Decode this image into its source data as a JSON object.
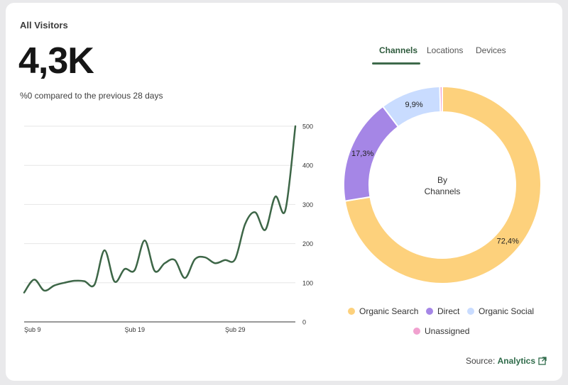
{
  "header": {
    "title": "All Visitors",
    "value": "4,3K",
    "comparison": "%0 compared to the previous 28 days"
  },
  "tabs": [
    {
      "label": "Channels",
      "active": true
    },
    {
      "label": "Locations",
      "active": false
    },
    {
      "label": "Devices",
      "active": false
    }
  ],
  "colors": {
    "line": "#3d6647",
    "grid": "#e6e6e6",
    "organic_search": "#fdd17c",
    "direct": "#a586e6",
    "organic_social": "#c9dcff",
    "unassigned": "#f1a1cf"
  },
  "chart_data": [
    {
      "type": "line",
      "title": "",
      "xlabel": "",
      "ylabel": "",
      "ylim": [
        0,
        500
      ],
      "yticks": [
        "0",
        "100",
        "200",
        "300",
        "400",
        "500"
      ],
      "xtick_labels": [
        "Şub 9",
        "Şub 19",
        "Şub 29"
      ],
      "grid": true,
      "x": [
        "Şub 9",
        "Şub 10",
        "Şub 11",
        "Şub 12",
        "Şub 13",
        "Şub 14",
        "Şub 15",
        "Şub 16",
        "Şub 17",
        "Şub 18",
        "Şub 19",
        "Şub 20",
        "Şub 21",
        "Şub 22",
        "Şub 23",
        "Şub 24",
        "Şub 25",
        "Şub 26",
        "Şub 27",
        "Şub 28",
        "Şub 29",
        "Şub 30",
        "Şub 31",
        "Şub 32",
        "Şub 33",
        "Şub 34",
        "Şub 35",
        "Şub 36"
      ],
      "values": [
        75,
        108,
        80,
        93,
        100,
        105,
        104,
        95,
        183,
        103,
        135,
        132,
        208,
        130,
        150,
        158,
        112,
        160,
        165,
        150,
        158,
        160,
        250,
        280,
        235,
        320,
        285,
        500
      ]
    },
    {
      "type": "pie",
      "center_label": [
        "By",
        "Channels"
      ],
      "legend_position": "bottom",
      "slices": [
        {
          "name": "Organic Search",
          "value": 72.4,
          "label": "72,4%"
        },
        {
          "name": "Direct",
          "value": 17.3,
          "label": "17,3%"
        },
        {
          "name": "Organic Social",
          "value": 9.9,
          "label": "9,9%"
        },
        {
          "name": "Unassigned",
          "value": 0.4,
          "label": ""
        }
      ]
    }
  ],
  "legend": [
    {
      "label": "Organic Search",
      "color_key": "organic_search"
    },
    {
      "label": "Direct",
      "color_key": "direct"
    },
    {
      "label": "Organic Social",
      "color_key": "organic_social"
    },
    {
      "label": "Unassigned",
      "color_key": "unassigned"
    }
  ],
  "source": {
    "prefix": "Source:",
    "link": "Analytics",
    "icon": "external-link-icon"
  }
}
